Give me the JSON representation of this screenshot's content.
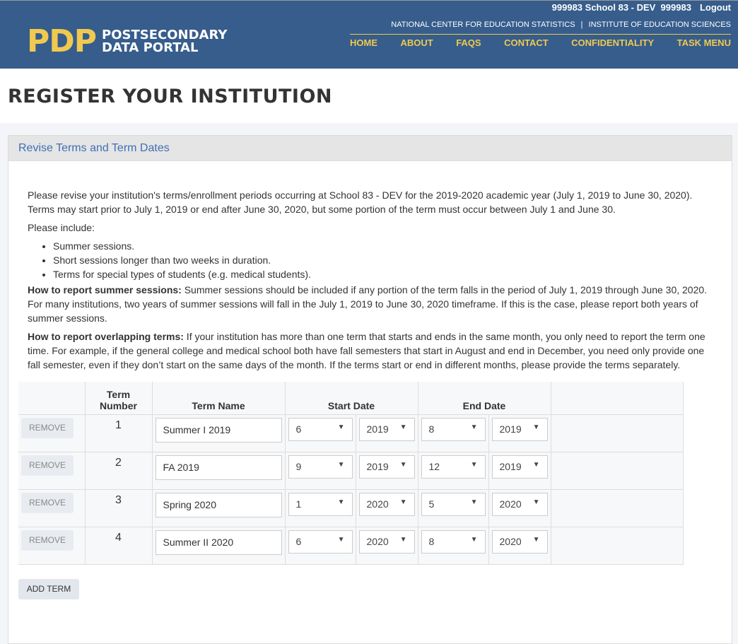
{
  "header": {
    "user_info": "999983 School 83 - DEV  999983",
    "logout": "Logout",
    "logo_mark": "PDP",
    "logo_line1": "POSTSECONDARY",
    "logo_line2": "DATA PORTAL",
    "org1": "NATIONAL CENTER FOR EDUCATION STATISTICS",
    "org_sep": "|",
    "org2": "INSTITUTE OF EDUCATION SCIENCES",
    "nav": [
      "HOME",
      "ABOUT",
      "FAQS",
      "CONTACT",
      "CONFIDENTIALITY",
      "TASK MENU"
    ]
  },
  "page_title": "REGISTER YOUR INSTITUTION",
  "panel": {
    "title": "Revise Terms and Term Dates",
    "intro": "Please revise your institution's terms/enrollment periods occurring at School 83 - DEV for the 2019-2020 academic year (July 1, 2019 to June 30, 2020). Terms may start prior to July 1, 2019 or end after June 30, 2020, but some portion of the term must occur between July 1 and June 30.",
    "include_label": "Please include:",
    "include": [
      "Summer sessions.",
      "Short sessions longer than two weeks in duration.",
      "Terms for special types of students (e.g. medical students)."
    ],
    "summer_label": "How to report summer sessions:",
    "summer_text": " Summer sessions should be included if any portion of the term falls in the period of July 1, 2019 through June 30, 2020. For many institutions, two years of summer sessions will fall in the July 1, 2019 to June 30, 2020 timeframe. If this is the case, please report both years of summer sessions.",
    "overlap_label": "How to report overlapping terms:",
    "overlap_text": " If your institution has more than one term that starts and ends in the same month, you only need to report the term one time. For example, if the general college and medical school both have fall semesters that start in August and end in December, you need only provide one fall semester, even if they don’t start on the same days of the month. If the terms start or end in different months, please provide the terms separately.",
    "columns": [
      "",
      "Term Number",
      "Term Name",
      "Start Date",
      "End Date"
    ],
    "remove_label": "REMOVE",
    "add_label": "ADD TERM",
    "rows": [
      {
        "num": "1",
        "name": "Summer I 2019",
        "sm": "6",
        "sy": "2019",
        "em": "8",
        "ey": "2019"
      },
      {
        "num": "2",
        "name": "FA 2019",
        "sm": "9",
        "sy": "2019",
        "em": "12",
        "ey": "2019"
      },
      {
        "num": "3",
        "name": "Spring 2020",
        "sm": "1",
        "sy": "2020",
        "em": "5",
        "ey": "2020"
      },
      {
        "num": "4",
        "name": "Summer II 2020",
        "sm": "6",
        "sy": "2020",
        "em": "8",
        "ey": "2020"
      }
    ]
  }
}
